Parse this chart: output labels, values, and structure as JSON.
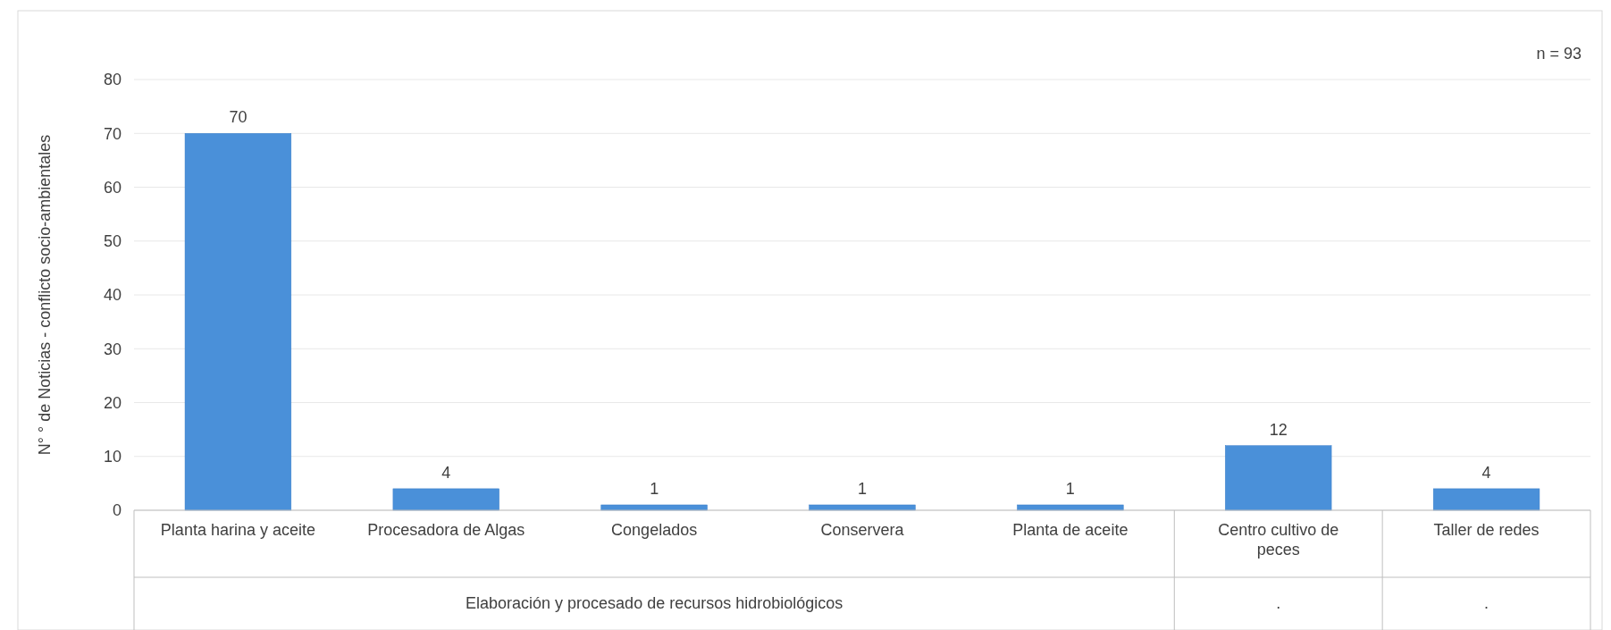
{
  "chart_data": {
    "type": "bar",
    "ylabel": "N° ° de Noticias - conflicto socio-ambientales",
    "categories": [
      "Planta harina y aceite",
      "Procesadora de Algas",
      "Congelados",
      "Conservera",
      "Planta de aceite",
      "Centro cultivo de peces",
      "Taller de redes"
    ],
    "values": [
      70,
      4,
      1,
      1,
      1,
      12,
      4
    ],
    "color": "#4a90d9",
    "data_labels": true,
    "ylim": [
      0,
      80
    ],
    "yticks": [
      0,
      10,
      20,
      30,
      40,
      50,
      60,
      70,
      80
    ],
    "grid": "y",
    "annotations": [
      "n = 93",
      "Elaboración y procesado de recursos hidrobiológicos",
      ".",
      "."
    ]
  }
}
